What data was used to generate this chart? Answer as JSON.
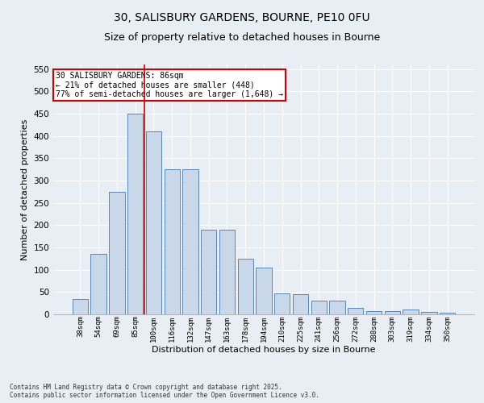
{
  "title": "30, SALISBURY GARDENS, BOURNE, PE10 0FU",
  "subtitle": "Size of property relative to detached houses in Bourne",
  "xlabel": "Distribution of detached houses by size in Bourne",
  "ylabel": "Number of detached properties",
  "categories": [
    "38sqm",
    "54sqm",
    "69sqm",
    "85sqm",
    "100sqm",
    "116sqm",
    "132sqm",
    "147sqm",
    "163sqm",
    "178sqm",
    "194sqm",
    "210sqm",
    "225sqm",
    "241sqm",
    "256sqm",
    "272sqm",
    "288sqm",
    "303sqm",
    "319sqm",
    "334sqm",
    "350sqm"
  ],
  "values": [
    35,
    135,
    275,
    450,
    410,
    325,
    325,
    190,
    190,
    125,
    105,
    47,
    45,
    30,
    30,
    15,
    7,
    8,
    10,
    5,
    4
  ],
  "bar_color": "#c8d8e8",
  "bar_edge_color": "#5588bb",
  "red_line_x": 3.5,
  "annotation_text": "30 SALISBURY GARDENS: 86sqm\n← 21% of detached houses are smaller (448)\n77% of semi-detached houses are larger (1,648) →",
  "annotation_box_color": "#ffffff",
  "annotation_box_edge_color": "#cc0000",
  "red_line_color": "#cc0000",
  "ylim": [
    0,
    560
  ],
  "yticks": [
    0,
    50,
    100,
    150,
    200,
    250,
    300,
    350,
    400,
    450,
    500,
    550
  ],
  "background_color": "#e8eef4",
  "footer_text": "Contains HM Land Registry data © Crown copyright and database right 2025.\nContains public sector information licensed under the Open Government Licence v3.0.",
  "title_fontsize": 10,
  "subtitle_fontsize": 9,
  "ylabel_fontsize": 8,
  "xlabel_fontsize": 8
}
